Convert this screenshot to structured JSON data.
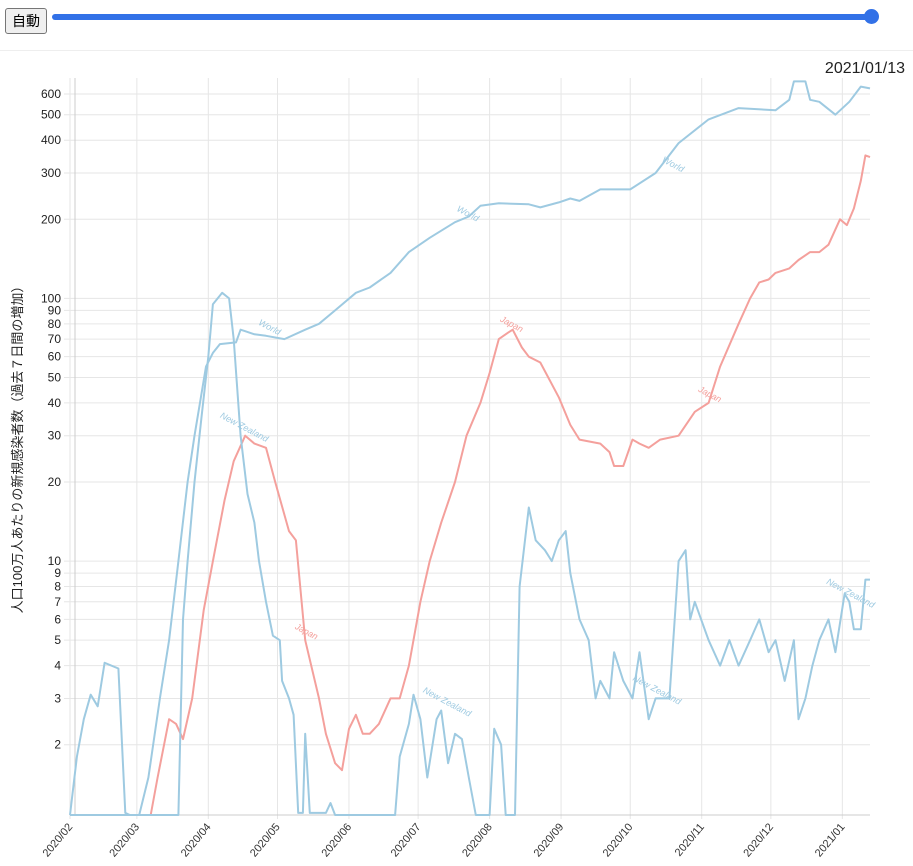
{
  "controls": {
    "auto_button": "自動",
    "slider_value": 1.0,
    "current_date": "2021/01/13"
  },
  "chart_data": {
    "type": "line",
    "title": "",
    "ylabel": "人口100万人あたりの新規感染者数（過去７日間の増加）",
    "xlabel": "",
    "yscale": "log",
    "ylim": [
      1.08,
      690
    ],
    "x_start": "2020-02-01",
    "x_unit": "days since 2020-02-01",
    "xlim": [
      0,
      347
    ],
    "x_ticks": [
      {
        "label": "2020/02",
        "day": 0
      },
      {
        "label": "2020/03",
        "day": 29
      },
      {
        "label": "2020/04",
        "day": 60
      },
      {
        "label": "2020/05",
        "day": 90
      },
      {
        "label": "2020/06",
        "day": 121
      },
      {
        "label": "2020/07",
        "day": 151
      },
      {
        "label": "2020/08",
        "day": 182
      },
      {
        "label": "2020/09",
        "day": 213
      },
      {
        "label": "2020/10",
        "day": 243
      },
      {
        "label": "2020/11",
        "day": 274
      },
      {
        "label": "2020/12",
        "day": 304
      },
      {
        "label": "2021/01",
        "day": 335
      }
    ],
    "y_ticks": [
      600,
      500,
      400,
      300,
      200,
      100,
      90,
      80,
      70,
      60,
      50,
      40,
      30,
      20,
      10,
      9,
      8,
      7,
      6,
      5,
      4,
      3,
      2
    ],
    "grid": true,
    "series": [
      {
        "name": "World",
        "color": "#9ecae1",
        "label_text": "World",
        "label_days": [
          172,
          86,
          261
        ],
        "points": [
          [
            0,
            1
          ],
          [
            3,
            1.8
          ],
          [
            6,
            2.5
          ],
          [
            9,
            3.1
          ],
          [
            12,
            2.8
          ],
          [
            15,
            4.1
          ],
          [
            21,
            3.9
          ],
          [
            24,
            1.1
          ],
          [
            26,
            1
          ],
          [
            30,
            1
          ],
          [
            34,
            1.5
          ],
          [
            39,
            3
          ],
          [
            43,
            5
          ],
          [
            47,
            10
          ],
          [
            51,
            20
          ],
          [
            54,
            30
          ],
          [
            59,
            55
          ],
          [
            62,
            62
          ],
          [
            65,
            67
          ],
          [
            72,
            68
          ],
          [
            74,
            76
          ],
          [
            76,
            75
          ],
          [
            80,
            73
          ],
          [
            85,
            72
          ],
          [
            93,
            70
          ],
          [
            102,
            76
          ],
          [
            108,
            80
          ],
          [
            115,
            90
          ],
          [
            124,
            105
          ],
          [
            130,
            110
          ],
          [
            139,
            125
          ],
          [
            147,
            150
          ],
          [
            156,
            170
          ],
          [
            167,
            195
          ],
          [
            173,
            205
          ],
          [
            178,
            225
          ],
          [
            186,
            230
          ],
          [
            199,
            228
          ],
          [
            204,
            222
          ],
          [
            212,
            232
          ],
          [
            217,
            240
          ],
          [
            221,
            235
          ],
          [
            230,
            260
          ],
          [
            243,
            260
          ],
          [
            254,
            300
          ],
          [
            264,
            390
          ],
          [
            277,
            480
          ],
          [
            290,
            530
          ],
          [
            306,
            520
          ],
          [
            312,
            570
          ],
          [
            314,
            670
          ],
          [
            319,
            670
          ],
          [
            321,
            570
          ],
          [
            325,
            560
          ],
          [
            332,
            500
          ],
          [
            338,
            560
          ],
          [
            343,
            640
          ],
          [
            347,
            630
          ]
        ]
      },
      {
        "name": "Japan",
        "color": "#f4a09c",
        "label_text": "Japan",
        "label_days": [
          191,
          102,
          277
        ],
        "points": [
          [
            0,
            1
          ],
          [
            35,
            1
          ],
          [
            38,
            1.5
          ],
          [
            43,
            2.5
          ],
          [
            46,
            2.4
          ],
          [
            49,
            2.1
          ],
          [
            53,
            3
          ],
          [
            58,
            6.5
          ],
          [
            62,
            10
          ],
          [
            67,
            17
          ],
          [
            71,
            24
          ],
          [
            76,
            30
          ],
          [
            80,
            28
          ],
          [
            85,
            27
          ],
          [
            89,
            20
          ],
          [
            95,
            13
          ],
          [
            98,
            12
          ],
          [
            102,
            5
          ],
          [
            108,
            3
          ],
          [
            111,
            2.2
          ],
          [
            115,
            1.7
          ],
          [
            118,
            1.6
          ],
          [
            121,
            2.3
          ],
          [
            124,
            2.6
          ],
          [
            127,
            2.2
          ],
          [
            130,
            2.2
          ],
          [
            134,
            2.4
          ],
          [
            139,
            3
          ],
          [
            143,
            3
          ],
          [
            147,
            4
          ],
          [
            152,
            7
          ],
          [
            156,
            10
          ],
          [
            161,
            14
          ],
          [
            167,
            20
          ],
          [
            172,
            30
          ],
          [
            178,
            40
          ],
          [
            182,
            52
          ],
          [
            186,
            70
          ],
          [
            190,
            74
          ],
          [
            192,
            76
          ],
          [
            196,
            65
          ],
          [
            199,
            60
          ],
          [
            204,
            57
          ],
          [
            212,
            42
          ],
          [
            217,
            33
          ],
          [
            221,
            29
          ],
          [
            230,
            28
          ],
          [
            234,
            26
          ],
          [
            236,
            23
          ],
          [
            240,
            23
          ],
          [
            244,
            29
          ],
          [
            247,
            28
          ],
          [
            251,
            27
          ],
          [
            256,
            29
          ],
          [
            264,
            30
          ],
          [
            271,
            37
          ],
          [
            277,
            40
          ],
          [
            282,
            55
          ],
          [
            290,
            80
          ],
          [
            295,
            100
          ],
          [
            299,
            115
          ],
          [
            303,
            118
          ],
          [
            306,
            125
          ],
          [
            312,
            130
          ],
          [
            316,
            140
          ],
          [
            321,
            150
          ],
          [
            325,
            150
          ],
          [
            329,
            160
          ],
          [
            334,
            200
          ],
          [
            337,
            190
          ],
          [
            340,
            220
          ],
          [
            343,
            280
          ],
          [
            345,
            350
          ],
          [
            347,
            345
          ]
        ]
      },
      {
        "name": "New Zealand",
        "color": "#9ecae1",
        "label_text": "New Zealand",
        "label_days": [
          75,
          163,
          254,
          338
        ],
        "points": [
          [
            0,
            1
          ],
          [
            47,
            1
          ],
          [
            49,
            6
          ],
          [
            51,
            10
          ],
          [
            54,
            20
          ],
          [
            57,
            35
          ],
          [
            60,
            60
          ],
          [
            62,
            95
          ],
          [
            66,
            105
          ],
          [
            69,
            100
          ],
          [
            71,
            70
          ],
          [
            74,
            30
          ],
          [
            77,
            18
          ],
          [
            80,
            14
          ],
          [
            82,
            10
          ],
          [
            85,
            7
          ],
          [
            88,
            5.2
          ],
          [
            91,
            5
          ],
          [
            92,
            3.5
          ],
          [
            95,
            3
          ],
          [
            97,
            2.6
          ],
          [
            99,
            1.1
          ],
          [
            101,
            1.1
          ],
          [
            102,
            2.2
          ],
          [
            104,
            1.1
          ],
          [
            111,
            1.1
          ],
          [
            113,
            1.2
          ],
          [
            115,
            1
          ],
          [
            141,
            1
          ],
          [
            143,
            1.8
          ],
          [
            147,
            2.4
          ],
          [
            149,
            3.1
          ],
          [
            152,
            2.5
          ],
          [
            155,
            1.5
          ],
          [
            159,
            2.5
          ],
          [
            161,
            2.7
          ],
          [
            164,
            1.7
          ],
          [
            167,
            2.2
          ],
          [
            170,
            2.1
          ],
          [
            173,
            1.5
          ],
          [
            176,
            1
          ],
          [
            182,
            1
          ],
          [
            184,
            2.3
          ],
          [
            187,
            2
          ],
          [
            189,
            1
          ],
          [
            193,
            1
          ],
          [
            195,
            8
          ],
          [
            199,
            16
          ],
          [
            202,
            12
          ],
          [
            206,
            11
          ],
          [
            209,
            10
          ],
          [
            212,
            12
          ],
          [
            215,
            13
          ],
          [
            217,
            9
          ],
          [
            221,
            6
          ],
          [
            225,
            5
          ],
          [
            228,
            3
          ],
          [
            230,
            3.5
          ],
          [
            234,
            3
          ],
          [
            236,
            4.5
          ],
          [
            240,
            3.5
          ],
          [
            244,
            3
          ],
          [
            247,
            4.5
          ],
          [
            251,
            2.5
          ],
          [
            254,
            3
          ],
          [
            256,
            3
          ],
          [
            260,
            3
          ],
          [
            264,
            10
          ],
          [
            267,
            11
          ],
          [
            269,
            6
          ],
          [
            271,
            7
          ],
          [
            277,
            5
          ],
          [
            282,
            4
          ],
          [
            286,
            5
          ],
          [
            290,
            4
          ],
          [
            295,
            5
          ],
          [
            299,
            6
          ],
          [
            303,
            4.5
          ],
          [
            306,
            5
          ],
          [
            310,
            3.5
          ],
          [
            314,
            5
          ],
          [
            316,
            2.5
          ],
          [
            319,
            3
          ],
          [
            322,
            4
          ],
          [
            325,
            5
          ],
          [
            329,
            6
          ],
          [
            332,
            4.5
          ],
          [
            336,
            7.5
          ],
          [
            338,
            7
          ],
          [
            340,
            5.5
          ],
          [
            343,
            5.5
          ],
          [
            345,
            8.5
          ],
          [
            347,
            8.5
          ]
        ]
      }
    ]
  }
}
